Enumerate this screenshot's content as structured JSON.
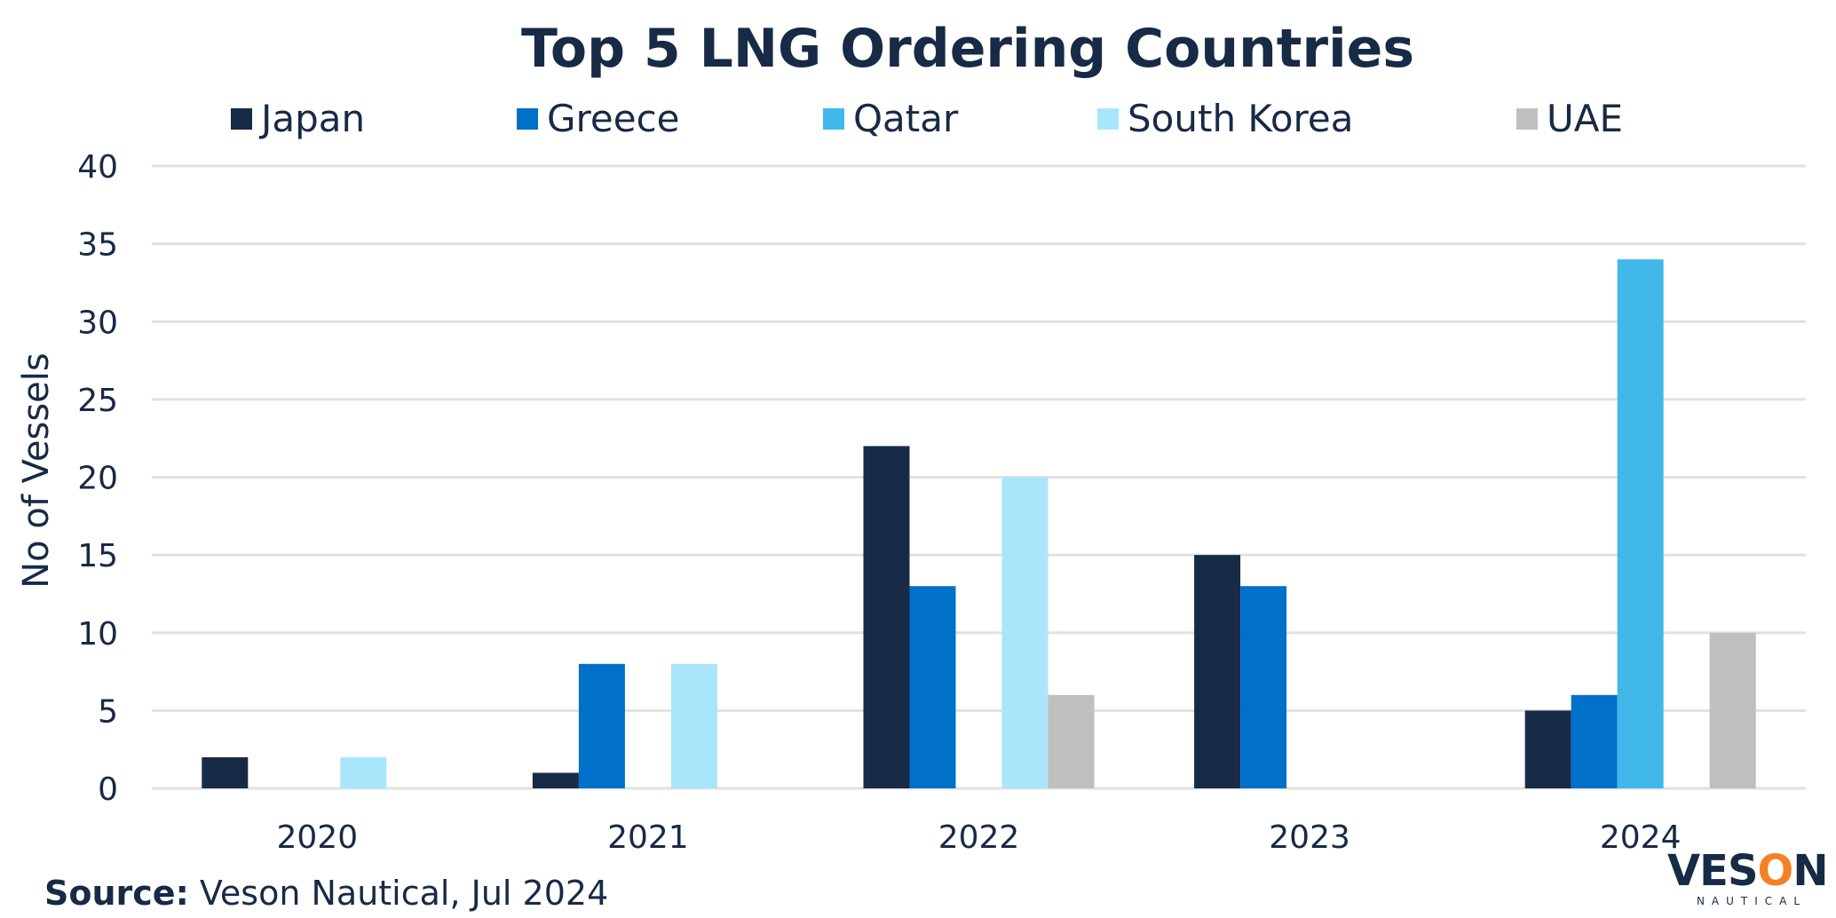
{
  "chart_data": {
    "type": "bar",
    "title": "Top 5 LNG Ordering Countries",
    "xlabel": "",
    "ylabel": "No of Vessels",
    "ylim": [
      0,
      40
    ],
    "yticks": [
      0,
      5,
      10,
      15,
      20,
      25,
      30,
      35,
      40
    ],
    "grid": true,
    "legend_position": "top",
    "categories": [
      "2020",
      "2021",
      "2022",
      "2023",
      "2024"
    ],
    "series": [
      {
        "name": "Japan",
        "color": "#172A46",
        "values": [
          2,
          1,
          22,
          15,
          5
        ]
      },
      {
        "name": "Greece",
        "color": "#0070C8",
        "values": [
          0,
          8,
          13,
          13,
          6
        ]
      },
      {
        "name": "Qatar",
        "color": "#41B8EA",
        "values": [
          0,
          0,
          0,
          0,
          34
        ]
      },
      {
        "name": "South Korea",
        "color": "#A9E6FC",
        "values": [
          2,
          8,
          20,
          0,
          0
        ]
      },
      {
        "name": "UAE",
        "color": "#BFBFBF",
        "values": [
          0,
          0,
          6,
          0,
          10
        ]
      }
    ]
  },
  "footer": {
    "source_label": "Source:",
    "source_text": " Veson Nautical, Jul 2024"
  },
  "logo": {
    "main_pre": "VES",
    "main_o": "O",
    "main_post": "N",
    "sub": "NAUTICAL"
  }
}
